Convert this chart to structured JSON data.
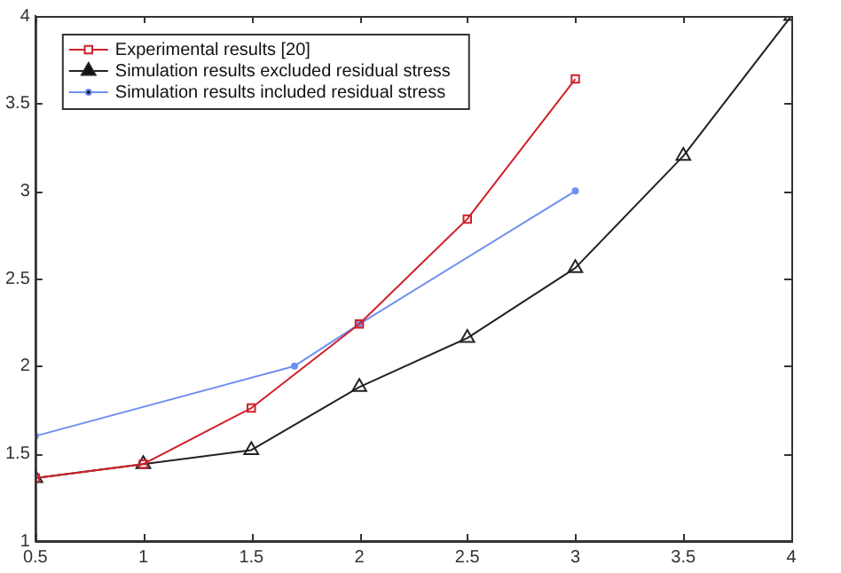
{
  "chart_data": {
    "type": "line",
    "xlim": [
      0.5,
      4
    ],
    "xticks": [
      0.5,
      1,
      1.5,
      2,
      2.5,
      3,
      3.5,
      4
    ],
    "ylim": [
      1,
      4
    ],
    "yticks": [
      1,
      1.5,
      2,
      2.5,
      3,
      3.5,
      4
    ],
    "grid": false,
    "legend": "top left",
    "line_style": "solid",
    "series": [
      {
        "name": "Experimental results [20]",
        "color": "#d0202a",
        "marker": "square",
        "x": [
          0.5,
          1,
          1.5,
          2,
          2.5,
          3
        ],
        "values": [
          1.36,
          1.44,
          1.76,
          2.24,
          2.84,
          3.64
        ]
      },
      {
        "name": "Simulation results excluded residual stress",
        "color": "#222222",
        "marker": "triangle",
        "x": [
          0.5,
          1,
          1.5,
          2,
          2.5,
          3,
          3.5,
          4
        ],
        "values": [
          1.36,
          1.44,
          1.52,
          1.88,
          2.16,
          2.56,
          3.2,
          4
        ]
      },
      {
        "name": "Simulation results included residual stress",
        "color": "#6f8ff0",
        "marker": "circle",
        "x": [
          0.5,
          1.7,
          2,
          3
        ],
        "values": [
          1.6,
          2,
          2.24,
          3
        ]
      }
    ]
  }
}
